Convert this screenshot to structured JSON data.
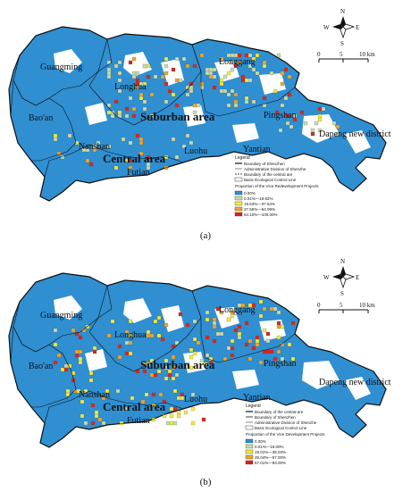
{
  "colors": {
    "blue": "#2f8fd1",
    "light_green": "#c5dcae",
    "yellow": "#f2ea3a",
    "orange": "#f0a52a",
    "red": "#d9261c",
    "boundary": "#111111"
  },
  "panels": [
    {
      "caption": "(a)",
      "districts": [
        "Guangming",
        "Longhua",
        "Longgang",
        "Bao'an",
        "Pingshan",
        "Nanshan",
        "Luohu",
        "Yantian",
        "Dapeng new district",
        "Futian"
      ],
      "areas": [
        "Suburban area",
        "Central area"
      ],
      "compass": {
        "north": "N",
        "south": "S",
        "east": "E",
        "west": "W"
      },
      "scale": {
        "ticks": [
          "0",
          "5",
          "10 km"
        ]
      },
      "legend": {
        "title": "Legend",
        "lines": [
          "Boundary of Shenzhen",
          "Administrative Division of Shenzhe",
          "Boundary of the central are",
          "Basic Ecological Control Line"
        ],
        "subtitle": "Proportion of the Vice Redevelopment Projects",
        "classes": [
          "0.00%",
          "0.01%—19.62%",
          "19.63%—37.54%",
          "37.55%—64.09%",
          "64.10%—100.00%"
        ],
        "class_colors": [
          "#2f8fd1",
          "#c5dcae",
          "#f2ea3a",
          "#f0a52a",
          "#d9261c"
        ]
      }
    },
    {
      "caption": "(b)",
      "districts": [
        "Guangming",
        "Longhua",
        "Longgang",
        "Bao'an",
        "Pingshan",
        "Nanshan",
        "Luohu",
        "Yantian",
        "Dapeng new district",
        "Futian"
      ],
      "areas": [
        "Suburban area",
        "Central area"
      ],
      "compass": {
        "north": "N",
        "south": "S",
        "east": "E",
        "west": "W"
      },
      "scale": {
        "ticks": [
          "0",
          "5",
          "10 km"
        ]
      },
      "legend": {
        "title": "Legend",
        "lines": [
          "Boundary of the central are",
          "Boundary of Shenzhen",
          "Administrative Division of Shenzhe",
          "Basic Ecological Control Line"
        ],
        "subtitle": "Proportion of the Vice Development Projects",
        "classes": [
          "0.00%",
          "0.01%—19.00%",
          "19.01%—35.03%",
          "35.04%—57.00%",
          "57.01%—93.00%"
        ],
        "class_colors": [
          "#2f8fd1",
          "#c5dcae",
          "#f2ea3a",
          "#f0a52a",
          "#d9261c"
        ]
      }
    }
  ]
}
